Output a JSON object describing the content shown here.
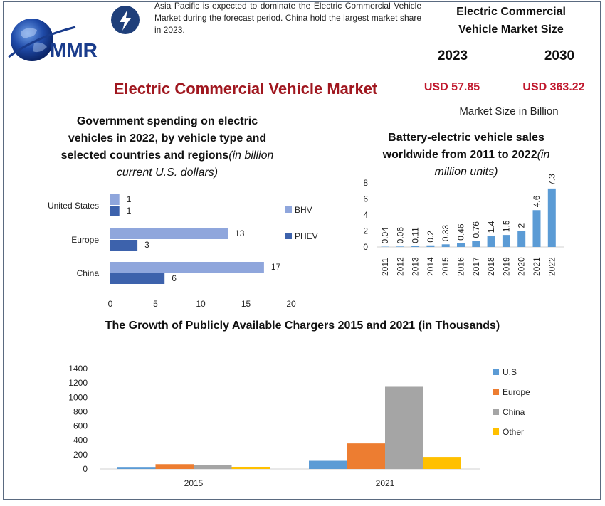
{
  "logo": {
    "text": "MMR"
  },
  "intro_text": "Asia Pacific is expected to dominate the Electric Commercial Vehicle Market during the forecast period. China hold the largest market share in 2023.",
  "market_size": {
    "title_line1": "Electric Commercial",
    "title_line2": "Vehicle Market Size",
    "year_a": "2023",
    "year_b": "2030",
    "value_a": "USD 57.85",
    "value_b": "USD 363.22",
    "unit_note": "Market Size in Billion"
  },
  "main_title": "Electric Commercial Vehicle Market",
  "colors": {
    "title_red": "#a0171f",
    "value_red": "#c0172c",
    "bhv": "#8fa6dc",
    "phev": "#3d62ac",
    "bev_bar": "#5b9bd5",
    "us": "#5b9bd5",
    "europe": "#ed7d31",
    "china": "#a5a5a5",
    "other": "#ffc000"
  },
  "chart_data": [
    {
      "type": "bar",
      "orientation": "horizontal",
      "title_main": "Government spending on electric vehicles in 2022, by vehicle type and selected countries and regions",
      "title_italic": "(in billion current U.S. dollars)",
      "title_lines": [
        "Government spending on electric",
        "vehicles in 2022, by vehicle type and",
        "selected countries and regions"
      ],
      "title_italic_inline": "(in billion",
      "title_italic_line": "current U.S. dollars)",
      "categories": [
        "United States",
        "Europe",
        "China"
      ],
      "series": [
        {
          "name": "BHV",
          "values": [
            1,
            13,
            17
          ]
        },
        {
          "name": "PHEV",
          "values": [
            1,
            3,
            6
          ]
        }
      ],
      "xlim": [
        0,
        20
      ],
      "xticks": [
        0,
        5,
        10,
        15,
        20
      ],
      "legend_position": "right",
      "grid": false
    },
    {
      "type": "bar",
      "title_lines": [
        "Battery-electric vehicle sales"
      ],
      "title_line2_main": "worldwide from 2011 to 2022",
      "title_line2_italic": "(in",
      "title_line3_italic": "million units)",
      "categories": [
        "2011",
        "2012",
        "2013",
        "2014",
        "2015",
        "2016",
        "2017",
        "2018",
        "2019",
        "2020",
        "2021",
        "2022"
      ],
      "values": [
        0.04,
        0.06,
        0.11,
        0.2,
        0.33,
        0.46,
        0.76,
        1.4,
        1.5,
        2,
        4.6,
        7.3
      ],
      "value_labels": [
        "0.04",
        "0.06",
        "0.11",
        "0.2",
        "0.33",
        "0.46",
        "0.76",
        "1.4",
        "1.5",
        "2",
        "4.6",
        "7.3"
      ],
      "ylim": [
        0,
        8
      ],
      "yticks": [
        0,
        2,
        4,
        6,
        8
      ],
      "grid": false
    },
    {
      "type": "bar",
      "title": "The Growth of Publicly Available Chargers 2015 and 2021 (in Thousands)",
      "categories": [
        "2015",
        "2021"
      ],
      "series": [
        {
          "name": "U.S",
          "values": [
            28,
            114
          ]
        },
        {
          "name": "Europe",
          "values": [
            67,
            356
          ]
        },
        {
          "name": "China",
          "values": [
            58,
            1147
          ]
        },
        {
          "name": "Other",
          "values": [
            30,
            168
          ]
        }
      ],
      "ylim": [
        0,
        1400
      ],
      "yticks": [
        0,
        200,
        400,
        600,
        800,
        1000,
        1200,
        1400
      ],
      "legend_position": "right",
      "grid": false
    }
  ]
}
